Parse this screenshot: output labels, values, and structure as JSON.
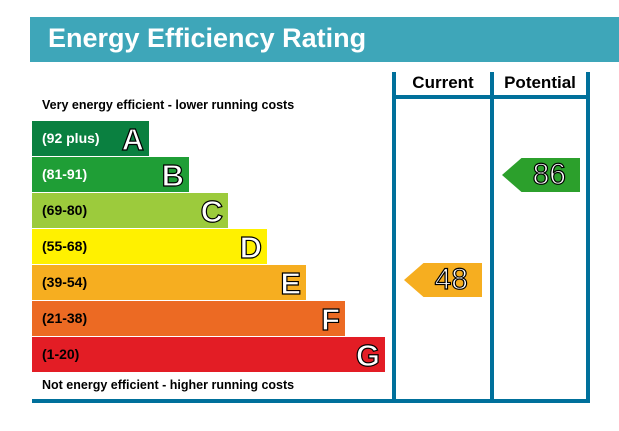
{
  "title": "Energy Efficiency Rating",
  "columns": {
    "current": "Current",
    "potential": "Potential"
  },
  "notes": {
    "top": "Very energy efficient - lower running costs",
    "bottom": "Not energy efficient - higher running costs"
  },
  "chart_data": {
    "type": "bar",
    "title": "Energy Efficiency Rating",
    "bands": [
      {
        "letter": "A",
        "range": "(92 plus)",
        "color": "#0a8040",
        "text_color": "#ffffff"
      },
      {
        "letter": "B",
        "range": "(81-91)",
        "color": "#1f9e36",
        "text_color": "#ffffff"
      },
      {
        "letter": "C",
        "range": "(69-80)",
        "color": "#9ccb3c",
        "text_color": "#000000"
      },
      {
        "letter": "D",
        "range": "(55-68)",
        "color": "#fff100",
        "text_color": "#000000"
      },
      {
        "letter": "E",
        "range": "(39-54)",
        "color": "#f6ae20",
        "text_color": "#000000"
      },
      {
        "letter": "F",
        "range": "(21-38)",
        "color": "#ec6a23",
        "text_color": "#000000"
      },
      {
        "letter": "G",
        "range": "(1-20)",
        "color": "#e31d25",
        "text_color": "#000000"
      }
    ],
    "current": {
      "value": "48",
      "band": "E",
      "color": "#f6ae20"
    },
    "potential": {
      "value": "86",
      "band": "B",
      "color": "#2ca02c"
    }
  }
}
